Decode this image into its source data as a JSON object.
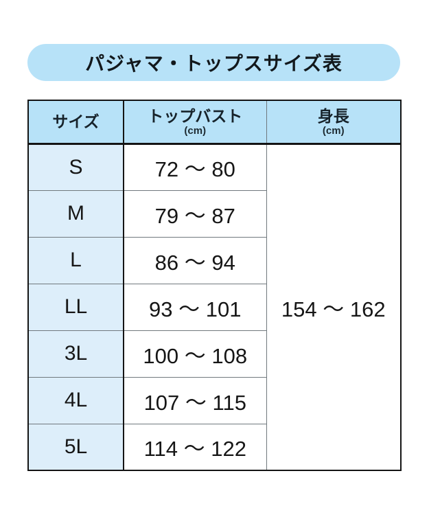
{
  "header": {
    "title": "パジャマ・トップスサイズ表"
  },
  "table": {
    "columns": {
      "size": {
        "label": "サイズ"
      },
      "bust": {
        "label": "トップバスト",
        "unit": "(cm)"
      },
      "height": {
        "label": "身長",
        "unit": "(cm)"
      }
    },
    "rows": [
      {
        "size": "S",
        "bust": "72 〜 80"
      },
      {
        "size": "M",
        "bust": "79 〜 87"
      },
      {
        "size": "L",
        "bust": "86 〜 94"
      },
      {
        "size": "LL",
        "bust": "93 〜 101"
      },
      {
        "size": "3L",
        "bust": "100 〜 108"
      },
      {
        "size": "4L",
        "bust": "107 〜 115"
      },
      {
        "size": "5L",
        "bust": "114 〜 122"
      }
    ],
    "height_value": "154 〜 162"
  },
  "colors": {
    "pill_and_header_blue": "#b7e2f8",
    "size_column_blue": "#ddeefa",
    "outer_border": "#141414",
    "inner_divider_gray": "#70787d"
  },
  "chart_data": {
    "type": "table",
    "title": "パジャマ・トップスサイズ表",
    "columns": [
      "サイズ",
      "トップバスト (cm)",
      "身長 (cm)"
    ],
    "rows": [
      {
        "size": "S",
        "bust_min": 72,
        "bust_max": 80
      },
      {
        "size": "M",
        "bust_min": 79,
        "bust_max": 87
      },
      {
        "size": "L",
        "bust_min": 86,
        "bust_max": 94
      },
      {
        "size": "LL",
        "bust_min": 93,
        "bust_max": 101
      },
      {
        "size": "3L",
        "bust_min": 100,
        "bust_max": 108
      },
      {
        "size": "4L",
        "bust_min": 107,
        "bust_max": 115
      },
      {
        "size": "5L",
        "bust_min": 114,
        "bust_max": 122
      }
    ],
    "height_min": 154,
    "height_max": 162,
    "height_merged_across_all_rows": true
  }
}
